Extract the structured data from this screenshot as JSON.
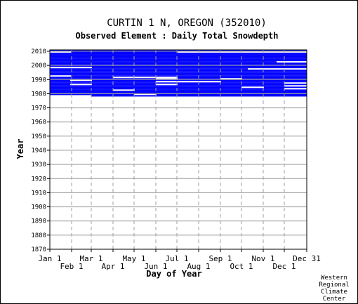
{
  "chart_data": {
    "type": "heatmap",
    "title": "CURTIN 1 N, OREGON   (352010)",
    "subtitle": "Observed Element : Daily Total Snowdepth",
    "xlabel": "Day of Year",
    "ylabel": "Year",
    "ylim": [
      1870,
      2011
    ],
    "xlim": [
      1,
      366
    ],
    "yticks": [
      1870,
      1880,
      1890,
      1900,
      1910,
      1920,
      1930,
      1940,
      1950,
      1960,
      1970,
      1980,
      1990,
      2000,
      2010
    ],
    "xticks_top_row": [
      {
        "day": 1,
        "label": "Jan 1"
      },
      {
        "day": 60,
        "label": "Mar 1"
      },
      {
        "day": 121,
        "label": "May 1"
      },
      {
        "day": 182,
        "label": "Jul 1"
      },
      {
        "day": 244,
        "label": "Sep 1"
      },
      {
        "day": 305,
        "label": "Nov 1"
      },
      {
        "day": 366,
        "label": "Dec 31"
      }
    ],
    "xticks_bottom_row": [
      {
        "day": 32,
        "label": "Feb 1"
      },
      {
        "day": 91,
        "label": "Apr 1"
      },
      {
        "day": 152,
        "label": "Jun 1"
      },
      {
        "day": 213,
        "label": "Aug 1"
      },
      {
        "day": 274,
        "label": "Oct 1"
      },
      {
        "day": 335,
        "label": "Dec 1"
      }
    ],
    "series": [
      {
        "values": [
          {
            "year": 2010,
            "start": 1,
            "end": 366
          },
          {
            "year": 2009,
            "start": 1,
            "end": 366
          },
          {
            "year": 2008,
            "start": 1,
            "end": 366
          },
          {
            "year": 2007,
            "start": 1,
            "end": 366
          },
          {
            "year": 2006,
            "start": 1,
            "end": 366
          },
          {
            "year": 2005,
            "start": 1,
            "end": 366
          },
          {
            "year": 2004,
            "start": 1,
            "end": 366
          },
          {
            "year": 2003,
            "start": 1,
            "end": 366
          },
          {
            "year": 2002,
            "start": 1,
            "end": 366
          },
          {
            "year": 2001,
            "start": 1,
            "end": 366
          },
          {
            "year": 2000,
            "start": 1,
            "end": 366
          },
          {
            "year": 1999,
            "start": 1,
            "end": 366
          },
          {
            "year": 1998,
            "start": 1,
            "end": 366
          },
          {
            "year": 1997,
            "start": 1,
            "end": 366
          },
          {
            "year": 1996,
            "start": 1,
            "end": 366
          },
          {
            "year": 1995,
            "start": 1,
            "end": 366
          },
          {
            "year": 1994,
            "start": 1,
            "end": 366
          },
          {
            "year": 1993,
            "start": 1,
            "end": 366
          },
          {
            "year": 1992,
            "start": 1,
            "end": 366
          },
          {
            "year": 1991,
            "start": 1,
            "end": 366
          },
          {
            "year": 1990,
            "start": 1,
            "end": 366
          },
          {
            "year": 1989,
            "start": 1,
            "end": 366
          },
          {
            "year": 1988,
            "start": 1,
            "end": 366
          },
          {
            "year": 1987,
            "start": 1,
            "end": 366
          },
          {
            "year": 1986,
            "start": 1,
            "end": 366
          },
          {
            "year": 1985,
            "start": 1,
            "end": 366
          },
          {
            "year": 1984,
            "start": 1,
            "end": 366
          },
          {
            "year": 1983,
            "start": 1,
            "end": 366
          },
          {
            "year": 1982,
            "start": 1,
            "end": 366
          },
          {
            "year": 1981,
            "start": 1,
            "end": 366
          },
          {
            "year": 1980,
            "start": 1,
            "end": 366
          },
          {
            "year": 1979,
            "start": 1,
            "end": 366
          },
          {
            "year": 1978,
            "start": 60,
            "end": 366
          }
        ],
        "gaps": [
          {
            "year": 2009,
            "start": 1,
            "end": 30
          },
          {
            "year": 2009,
            "start": 183,
            "end": 366
          },
          {
            "year": 2002,
            "start": 324,
            "end": 366
          },
          {
            "year": 1998,
            "start": 1,
            "end": 60
          },
          {
            "year": 1997,
            "start": 283,
            "end": 366
          },
          {
            "year": 1992,
            "start": 1,
            "end": 30
          },
          {
            "year": 1991,
            "start": 91,
            "end": 182
          },
          {
            "year": 1990,
            "start": 152,
            "end": 182
          },
          {
            "year": 1990,
            "start": 244,
            "end": 274
          },
          {
            "year": 1989,
            "start": 30,
            "end": 60
          },
          {
            "year": 1988,
            "start": 152,
            "end": 244
          },
          {
            "year": 1987,
            "start": 335,
            "end": 366
          },
          {
            "year": 1986,
            "start": 30,
            "end": 60
          },
          {
            "year": 1986,
            "start": 152,
            "end": 182
          },
          {
            "year": 1985,
            "start": 335,
            "end": 366
          },
          {
            "year": 1984,
            "start": 274,
            "end": 305
          },
          {
            "year": 1983,
            "start": 335,
            "end": 366
          },
          {
            "year": 1982,
            "start": 91,
            "end": 121
          },
          {
            "year": 1979,
            "start": 121,
            "end": 152
          }
        ]
      }
    ],
    "colors": {
      "data": "#0000ff",
      "gap": "#ffffff",
      "grid": "#a0a0a0",
      "gridline_dash": "dashed"
    }
  },
  "credit": [
    "Western",
    "Regional",
    "Climate",
    "Center"
  ]
}
